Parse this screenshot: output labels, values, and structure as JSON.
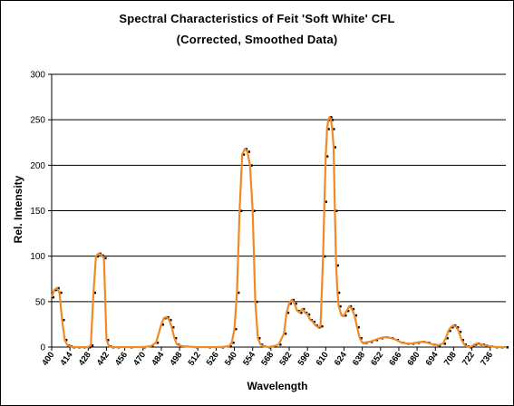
{
  "chart_data": {
    "type": "line",
    "title": "Spectral Characteristics of Feit 'Soft White' CFL",
    "subtitle": "(Corrected, Smoothed Data)",
    "xlabel": "Wavelength",
    "ylabel": "Rel. Intensity",
    "xlim": [
      400,
      748
    ],
    "ylim": [
      0,
      300
    ],
    "y_ticks": [
      0,
      50,
      100,
      150,
      200,
      250,
      300
    ],
    "x_ticks": [
      400,
      414,
      428,
      442,
      456,
      470,
      484,
      498,
      512,
      526,
      540,
      554,
      568,
      582,
      596,
      610,
      624,
      638,
      652,
      666,
      680,
      694,
      708,
      722,
      736
    ],
    "grid": "horizontal",
    "colors": {
      "line": "#f08a24",
      "markers": "#000000",
      "grid": "#000000"
    },
    "series": [
      {
        "x": [
          400,
          402,
          404,
          406,
          408,
          410,
          412,
          414,
          416,
          420,
          424,
          428,
          430,
          432,
          434,
          436,
          438,
          440,
          442,
          444,
          446,
          450,
          460,
          470,
          476,
          480,
          484,
          486,
          488,
          490,
          492,
          494,
          496,
          500,
          510,
          520,
          530,
          536,
          538,
          540,
          542,
          544,
          546,
          548,
          550,
          552,
          554,
          556,
          558,
          560,
          562,
          566,
          570,
          574,
          578,
          580,
          582,
          584,
          586,
          588,
          590,
          592,
          594,
          596,
          598,
          600,
          602,
          604,
          606,
          608,
          609,
          610,
          611,
          612,
          613,
          614,
          615,
          616,
          617,
          618,
          619,
          620,
          622,
          624,
          626,
          628,
          630,
          632,
          634,
          636,
          638,
          640,
          644,
          648,
          652,
          656,
          660,
          664,
          668,
          672,
          676,
          680,
          684,
          688,
          692,
          696,
          700,
          702,
          704,
          706,
          708,
          710,
          712,
          714,
          716,
          718,
          720,
          722,
          724,
          726,
          728,
          730,
          732,
          736,
          740,
          744,
          748
        ],
        "y": [
          55,
          63,
          65,
          60,
          30,
          8,
          2,
          1,
          0,
          0,
          0,
          0,
          2,
          60,
          100,
          103,
          101,
          98,
          8,
          1,
          0,
          0,
          0,
          0,
          1,
          5,
          25,
          32,
          33,
          30,
          22,
          10,
          3,
          1,
          0,
          0,
          0,
          1,
          5,
          20,
          60,
          150,
          212,
          218,
          215,
          200,
          150,
          50,
          10,
          3,
          1,
          0,
          1,
          3,
          15,
          38,
          48,
          52,
          48,
          40,
          38,
          42,
          38,
          36,
          30,
          28,
          24,
          22,
          23,
          100,
          160,
          210,
          240,
          250,
          253,
          250,
          240,
          220,
          150,
          90,
          60,
          45,
          35,
          35,
          40,
          45,
          42,
          35,
          22,
          10,
          5,
          5,
          6,
          8,
          10,
          11,
          10,
          8,
          5,
          4,
          4,
          5,
          6,
          5,
          3,
          2,
          4,
          10,
          18,
          22,
          24,
          22,
          17,
          8,
          3,
          1,
          0,
          1,
          3,
          4,
          3,
          3,
          2,
          1,
          0,
          0,
          0
        ]
      }
    ]
  }
}
